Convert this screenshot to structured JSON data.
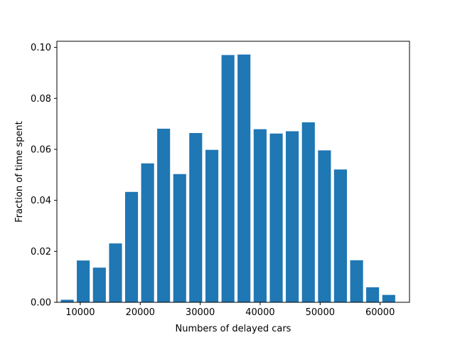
{
  "chart_data": {
    "type": "bar",
    "xlabel": "Numbers of delayed cars",
    "ylabel": "Fraction of time spent",
    "xlim": [
      6100,
      64900
    ],
    "ylim": [
      0,
      0.1024
    ],
    "x_ticks": [
      10000,
      20000,
      30000,
      40000,
      50000,
      60000
    ],
    "x_tick_labels": [
      "10000",
      "20000",
      "30000",
      "40000",
      "50000",
      "60000"
    ],
    "y_ticks": [
      0.0,
      0.02,
      0.04,
      0.06,
      0.08,
      0.1
    ],
    "y_tick_labels": [
      "0.00",
      "0.02",
      "0.04",
      "0.06",
      "0.08",
      "0.10"
    ],
    "bar_width": 2150,
    "x": [
      7830,
      10500,
      13190,
      15880,
      18550,
      21230,
      23900,
      26580,
      29250,
      31950,
      34630,
      37300,
      39990,
      42680,
      45350,
      48040,
      50720,
      53390,
      56080,
      58750,
      61440
    ],
    "values": [
      0.001,
      0.0164,
      0.0136,
      0.0231,
      0.0433,
      0.0545,
      0.0681,
      0.0503,
      0.0664,
      0.0598,
      0.097,
      0.0972,
      0.0679,
      0.0662,
      0.0671,
      0.0706,
      0.0596,
      0.0521,
      0.0165,
      0.0059,
      0.0029
    ],
    "grid": false,
    "bar_color": "#1f77b4"
  }
}
